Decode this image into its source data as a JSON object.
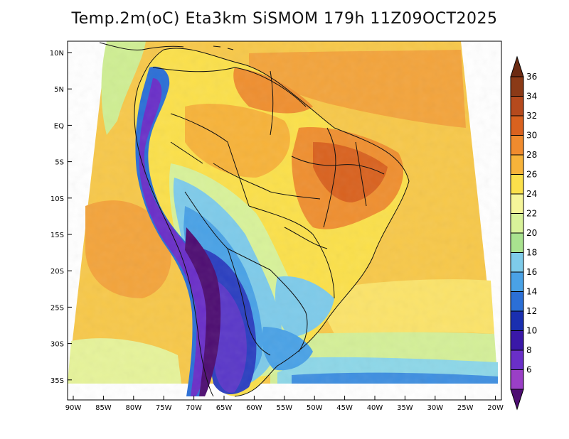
{
  "title": "Temp.2m(oC) Eta3km SiSMOM 179h 11Z09OCT2025",
  "lat_labels": [
    "10N",
    "5N",
    "EQ",
    "5S",
    "10S",
    "15S",
    "20S",
    "25S",
    "30S",
    "35S"
  ],
  "lon_labels": [
    "90W",
    "85W",
    "80W",
    "75W",
    "70W",
    "65W",
    "60W",
    "55W",
    "50W",
    "45W",
    "40W",
    "35W",
    "30W",
    "25W",
    "20W"
  ],
  "colorbar": {
    "labels": [
      "36",
      "34",
      "32",
      "30",
      "28",
      "26",
      "24",
      "22",
      "20",
      "18",
      "16",
      "14",
      "12",
      "10",
      "8",
      "6"
    ],
    "colors": [
      "#6b2a12",
      "#8b3a17",
      "#b54a1d",
      "#d9621f",
      "#f08b2e",
      "#f7b33a",
      "#fbe04b",
      "#f5f59a",
      "#d8f29a",
      "#a9e28f",
      "#7ecbea",
      "#4aa2e6",
      "#2b6fd6",
      "#1a2fb0",
      "#3a18a8",
      "#6a2fc8",
      "#9a3fc6",
      "#4e0e72"
    ]
  },
  "palette": {
    "ocean_warm": "#f7c44a",
    "ocean_hot": "#f2a13c",
    "ocean_mild": "#fbe468",
    "cool_south": "#cfee93",
    "land_hot": "#e8802c",
    "andes_cold": "#5a1b8a"
  }
}
